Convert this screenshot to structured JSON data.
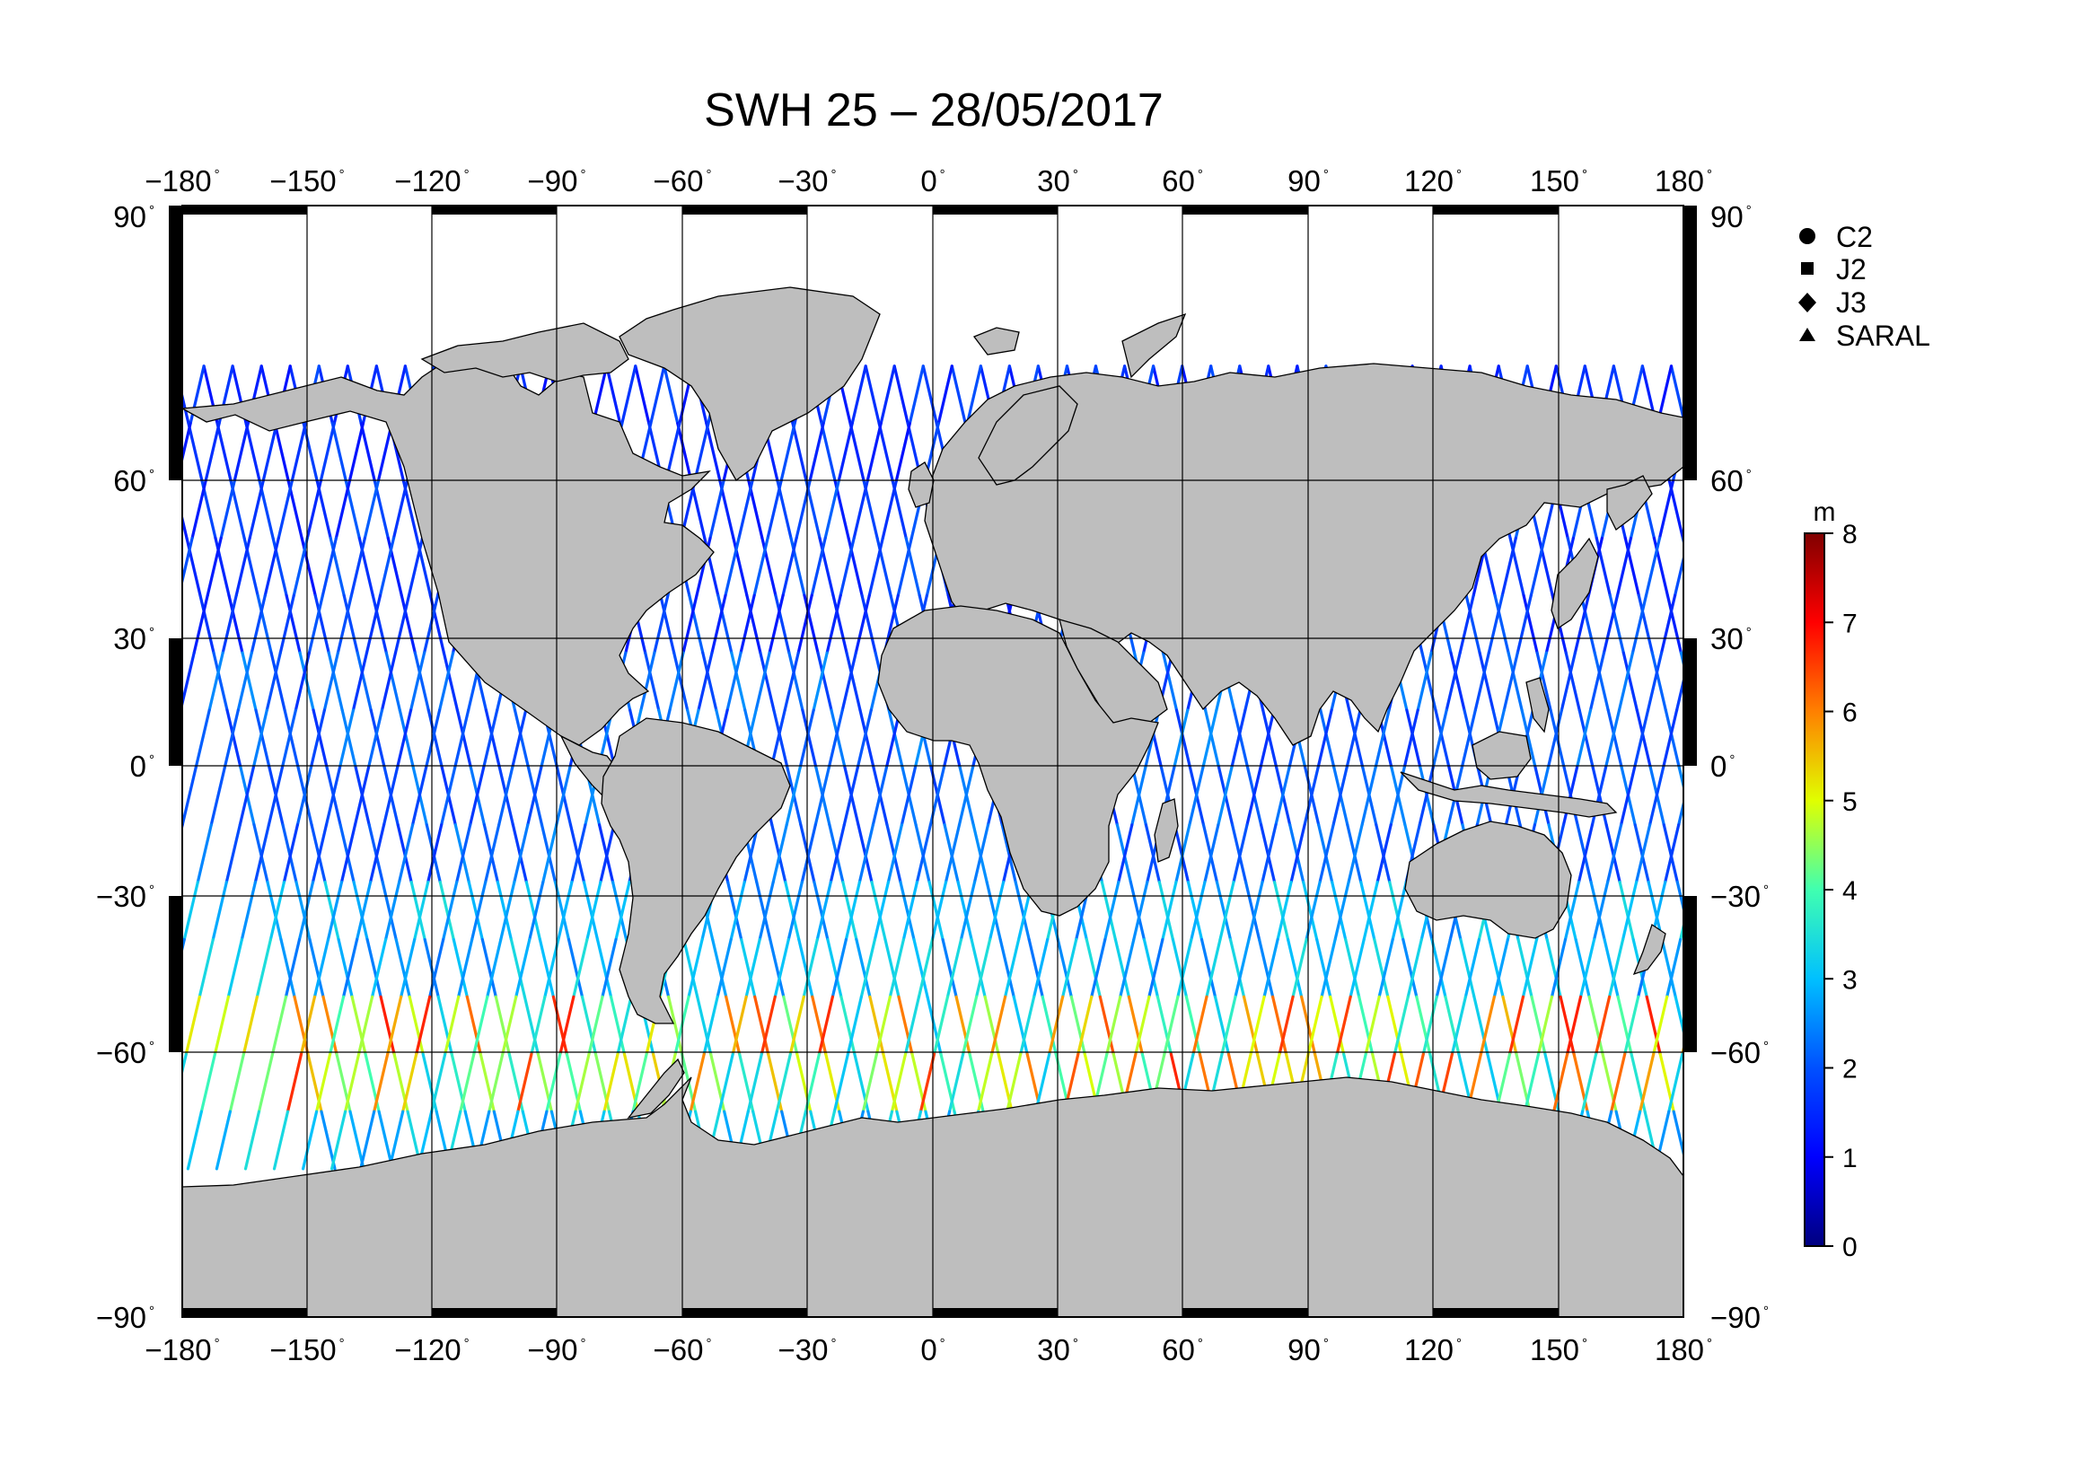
{
  "title": "SWH 25 – 28/05/2017",
  "legend": {
    "items": [
      {
        "symbol": "circle",
        "label": "C2"
      },
      {
        "symbol": "square",
        "label": "J2"
      },
      {
        "symbol": "diamond",
        "label": "J3"
      },
      {
        "symbol": "triangle",
        "label": "SARAL"
      }
    ]
  },
  "colorbar": {
    "unit": "m",
    "min": 0,
    "max": 8,
    "ticks": [
      "0",
      "1",
      "2",
      "3",
      "4",
      "5",
      "6",
      "7",
      "8"
    ],
    "colormap": [
      "#00007f",
      "#0000ff",
      "#007fff",
      "#00ffff",
      "#7fff7f",
      "#ffff00",
      "#ff7f00",
      "#ff0000",
      "#7f0000"
    ]
  },
  "axes": {
    "lon_ticks": [
      "−180",
      "−150",
      "−120",
      "−90",
      "−60",
      "−30",
      "0",
      "30",
      "60",
      "90",
      "120",
      "150",
      "180"
    ],
    "lat_ticks": [
      "90",
      "60",
      "30",
      "0",
      "−30",
      "−60",
      "−90"
    ],
    "lon_range": [
      -180,
      180
    ],
    "lat_range": [
      -90,
      90
    ],
    "degree_symbol": "°",
    "grid": true
  },
  "colors": {
    "land": "#bebebe",
    "ocean": "#ffffff",
    "frame": "#000000"
  }
}
